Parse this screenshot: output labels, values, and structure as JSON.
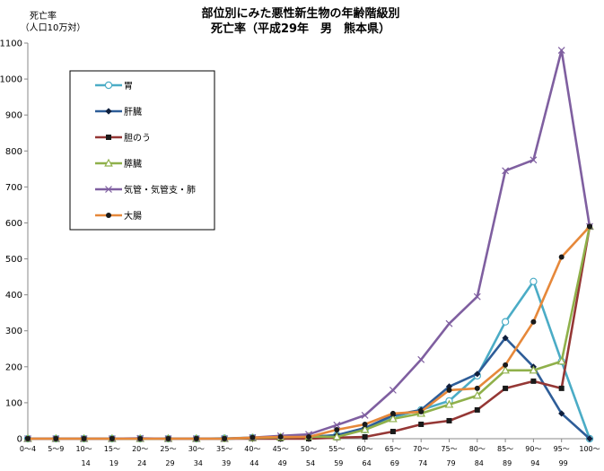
{
  "chart_data": {
    "type": "line",
    "title": "部位別にみた悪性新生物の年齢階級別",
    "subtitle": "死亡率（平成29年　男　熊本県）",
    "ylabel": "死亡率",
    "ylabel_unit": "（人口10万対）",
    "ylim": [
      0,
      1100
    ],
    "yticks": [
      0,
      100,
      200,
      300,
      400,
      500,
      600,
      700,
      800,
      900,
      1000,
      1100
    ],
    "grid": false,
    "legend_position": "top-left",
    "categories": [
      [
        "0～4",
        ""
      ],
      [
        "5～9",
        ""
      ],
      [
        "10～",
        "14"
      ],
      [
        "15～",
        "19"
      ],
      [
        "20～",
        "24"
      ],
      [
        "25～",
        "29"
      ],
      [
        "30～",
        "34"
      ],
      [
        "35～",
        "39"
      ],
      [
        "40～",
        "44"
      ],
      [
        "45～",
        "49"
      ],
      [
        "50～",
        "54"
      ],
      [
        "55～",
        "59"
      ],
      [
        "60～",
        "64"
      ],
      [
        "65～",
        "69"
      ],
      [
        "70～",
        "74"
      ],
      [
        "75～",
        "79"
      ],
      [
        "80～",
        "84"
      ],
      [
        "85～",
        "89"
      ],
      [
        "90～",
        "94"
      ],
      [
        "95～",
        "99"
      ],
      [
        "100～",
        ""
      ]
    ],
    "series": [
      {
        "name": "胃",
        "color": "#4bacc6",
        "marker": "circle-open",
        "values": [
          0,
          0,
          0,
          0,
          0,
          0,
          0,
          1,
          3,
          4,
          5,
          10,
          25,
          60,
          80,
          105,
          175,
          325,
          437,
          215,
          0
        ]
      },
      {
        "name": "肝臓",
        "color": "#2e5d98",
        "marker": "diamond",
        "values": [
          0,
          0,
          0,
          0,
          0,
          0,
          0,
          0,
          2,
          3,
          5,
          10,
          30,
          65,
          80,
          145,
          180,
          280,
          200,
          70,
          0
        ]
      },
      {
        "name": "胆のう",
        "color": "#953735",
        "marker": "square",
        "values": [
          0,
          0,
          0,
          0,
          0,
          0,
          0,
          0,
          0,
          0,
          0,
          3,
          5,
          20,
          40,
          50,
          80,
          140,
          160,
          140,
          590
        ]
      },
      {
        "name": "膵臓",
        "color": "#8fb04a",
        "marker": "triangle-open",
        "values": [
          0,
          0,
          0,
          0,
          0,
          0,
          0,
          0,
          2,
          4,
          6,
          5,
          25,
          55,
          70,
          95,
          120,
          190,
          190,
          215,
          590
        ]
      },
      {
        "name": "気管・気管支・肺",
        "color": "#7f5fa0",
        "marker": "x",
        "values": [
          0,
          0,
          0,
          0,
          1,
          0,
          0,
          0,
          3,
          8,
          12,
          38,
          65,
          135,
          220,
          320,
          395,
          745,
          775,
          1080,
          590
        ]
      },
      {
        "name": "大腸",
        "color": "#e6883a",
        "marker": "dot",
        "values": [
          0,
          0,
          0,
          0,
          0,
          0,
          0,
          0,
          3,
          5,
          5,
          25,
          40,
          70,
          75,
          135,
          140,
          205,
          325,
          505,
          590
        ]
      }
    ]
  }
}
